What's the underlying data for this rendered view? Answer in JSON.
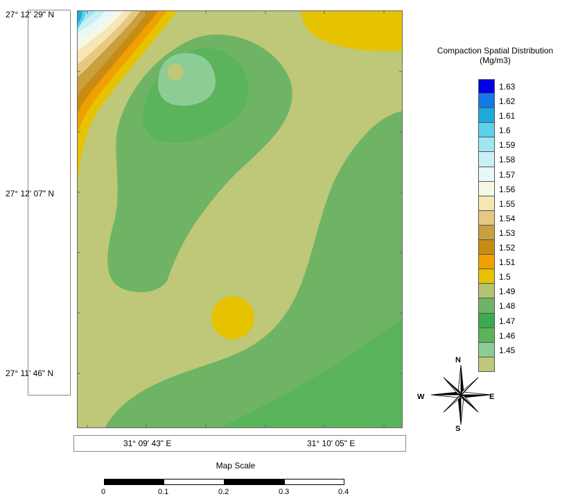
{
  "map": {
    "lat_labels": [
      "27° 12' 29\" N",
      "27° 12' 07\" N",
      "27° 11' 46\" N"
    ],
    "lon_labels": [
      "31° 09' 43\" E",
      "31° 10' 05\" E"
    ]
  },
  "legend": {
    "title_line1": "Compaction Spatial Distribution",
    "title_line2": "(Mg/m3)",
    "items": [
      {
        "value": "1.63",
        "color": "#0000e6"
      },
      {
        "value": "1.62",
        "color": "#1478e6"
      },
      {
        "value": "1.61",
        "color": "#1eaadc"
      },
      {
        "value": "1.6",
        "color": "#5ad2eb"
      },
      {
        "value": "1.59",
        "color": "#a0e6f0"
      },
      {
        "value": "1.58",
        "color": "#c8f0f5"
      },
      {
        "value": "1.57",
        "color": "#e6f8f8"
      },
      {
        "value": "1.56",
        "color": "#f5f8e6"
      },
      {
        "value": "1.55",
        "color": "#f5e6b4"
      },
      {
        "value": "1.54",
        "color": "#e6c882"
      },
      {
        "value": "1.53",
        "color": "#c8a03c"
      },
      {
        "value": "1.52",
        "color": "#c88c14"
      },
      {
        "value": "1.51",
        "color": "#f0a000"
      },
      {
        "value": "1.5",
        "color": "#e6c300"
      },
      {
        "value": "1.49",
        "color": "#b4c36e"
      },
      {
        "value": "1.48",
        "color": "#6eb464"
      },
      {
        "value": "1.47",
        "color": "#3caa50"
      },
      {
        "value": "1.46",
        "color": "#5ab45a"
      },
      {
        "value": "1.45",
        "color": "#8ccd96"
      },
      {
        "value": "",
        "color": "#bec878"
      }
    ]
  },
  "scale": {
    "title": "Map Scale",
    "ticks": [
      "0",
      "0.1",
      "0.2",
      "0.3",
      "0.4"
    ]
  },
  "compass": {
    "n": "N",
    "s": "S",
    "e": "E",
    "w": "W"
  }
}
